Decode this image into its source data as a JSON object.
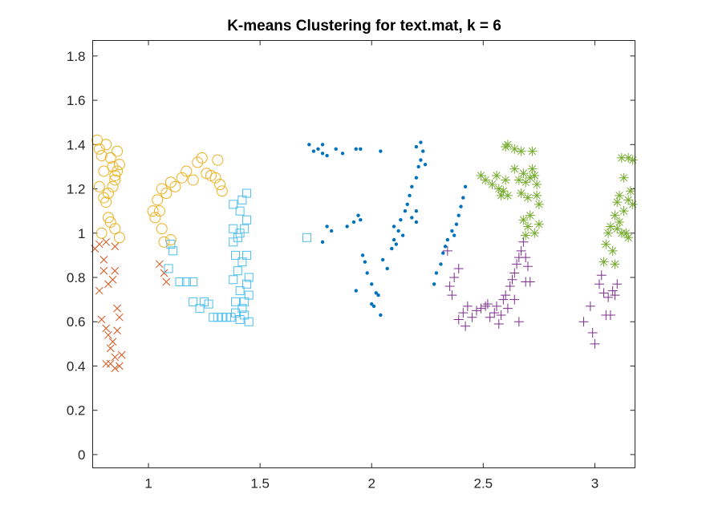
{
  "chart_data": {
    "type": "scatter",
    "title": "K-means Clustering for text.mat, k = 6",
    "xlabel": "",
    "ylabel": "",
    "xlim": [
      0.75,
      3.18
    ],
    "ylim": [
      -0.06,
      1.87
    ],
    "xticks": [
      1,
      1.5,
      2,
      2.5,
      3
    ],
    "xtick_labels": [
      "1",
      "1.5",
      "2",
      "2.5",
      "3"
    ],
    "yticks": [
      0,
      0.2,
      0.4,
      0.6,
      0.8,
      1,
      1.2,
      1.4,
      1.6,
      1.8
    ],
    "ytick_labels": [
      "0",
      "0.2",
      "0.4",
      "0.6",
      "0.8",
      "1",
      "1.2",
      "1.4",
      "1.6",
      "1.8"
    ],
    "grid": false,
    "box": true,
    "series": [
      {
        "marker": "circle",
        "color": "#EDB120",
        "points": [
          [
            0.77,
            1.42
          ],
          [
            0.78,
            1.38
          ],
          [
            0.79,
            1.35
          ],
          [
            0.8,
            1.28
          ],
          [
            0.81,
            1.4
          ],
          [
            0.83,
            1.34
          ],
          [
            0.84,
            1.3
          ],
          [
            0.85,
            1.26
          ],
          [
            0.86,
            1.37
          ],
          [
            0.87,
            1.31
          ],
          [
            0.78,
            1.21
          ],
          [
            0.8,
            1.16
          ],
          [
            0.81,
            1.14
          ],
          [
            0.82,
            1.18
          ],
          [
            0.84,
            1.21
          ],
          [
            0.85,
            1.24
          ],
          [
            0.86,
            1.28
          ],
          [
            0.79,
            1.0
          ],
          [
            0.82,
            1.07
          ],
          [
            0.83,
            1.05
          ],
          [
            0.85,
            1.02
          ],
          [
            0.87,
            0.98
          ],
          [
            1.02,
            1.1
          ],
          [
            1.03,
            1.07
          ],
          [
            1.04,
            1.15
          ],
          [
            1.06,
            1.2
          ],
          [
            1.08,
            1.18
          ],
          [
            1.1,
            1.23
          ],
          [
            1.12,
            1.21
          ],
          [
            1.15,
            1.25
          ],
          [
            1.17,
            1.28
          ],
          [
            1.2,
            1.24
          ],
          [
            1.22,
            1.32
          ],
          [
            1.24,
            1.34
          ],
          [
            1.26,
            1.27
          ],
          [
            1.28,
            1.26
          ],
          [
            1.3,
            1.25
          ],
          [
            1.31,
            1.33
          ],
          [
            1.32,
            1.22
          ],
          [
            1.33,
            1.19
          ],
          [
            1.06,
            1.02
          ],
          [
            1.07,
            0.96
          ],
          [
            1.1,
            0.97
          ],
          [
            1.05,
            1.1
          ]
        ]
      },
      {
        "marker": "x",
        "color": "#D95319",
        "points": [
          [
            0.76,
            0.93
          ],
          [
            0.78,
            0.95
          ],
          [
            0.8,
            0.88
          ],
          [
            0.81,
            0.96
          ],
          [
            0.8,
            0.83
          ],
          [
            0.82,
            0.77
          ],
          [
            0.84,
            0.79
          ],
          [
            0.85,
            0.83
          ],
          [
            0.85,
            0.94
          ],
          [
            0.78,
            0.74
          ],
          [
            0.79,
            0.61
          ],
          [
            0.81,
            0.57
          ],
          [
            0.82,
            0.54
          ],
          [
            0.83,
            0.48
          ],
          [
            0.84,
            0.51
          ],
          [
            0.85,
            0.44
          ],
          [
            0.86,
            0.66
          ],
          [
            0.86,
            0.56
          ],
          [
            0.87,
            0.62
          ],
          [
            0.88,
            0.45
          ],
          [
            0.81,
            0.41
          ],
          [
            0.83,
            0.41
          ],
          [
            0.85,
            0.39
          ],
          [
            0.87,
            0.4
          ],
          [
            1.05,
            0.86
          ],
          [
            1.07,
            0.82
          ],
          [
            1.08,
            0.78
          ]
        ]
      },
      {
        "marker": "square",
        "color": "#4DBEEE",
        "points": [
          [
            1.1,
            0.95
          ],
          [
            1.11,
            0.92
          ],
          [
            1.09,
            0.84
          ],
          [
            1.14,
            0.78
          ],
          [
            1.17,
            0.78
          ],
          [
            1.2,
            0.78
          ],
          [
            1.2,
            0.69
          ],
          [
            1.23,
            0.66
          ],
          [
            1.25,
            0.69
          ],
          [
            1.27,
            0.68
          ],
          [
            1.29,
            0.62
          ],
          [
            1.31,
            0.62
          ],
          [
            1.33,
            0.62
          ],
          [
            1.35,
            0.62
          ],
          [
            1.37,
            0.62
          ],
          [
            1.39,
            0.64
          ],
          [
            1.41,
            0.61
          ],
          [
            1.43,
            0.63
          ],
          [
            1.45,
            0.6
          ],
          [
            1.42,
            0.66
          ],
          [
            1.43,
            0.69
          ],
          [
            1.45,
            0.72
          ],
          [
            1.44,
            0.77
          ],
          [
            1.41,
            0.74
          ],
          [
            1.39,
            0.69
          ],
          [
            1.38,
            0.79
          ],
          [
            1.4,
            0.83
          ],
          [
            1.39,
            0.9
          ],
          [
            1.42,
            0.87
          ],
          [
            1.44,
            0.9
          ],
          [
            1.4,
            0.98
          ],
          [
            1.38,
            0.96
          ],
          [
            1.41,
            1.0
          ],
          [
            1.43,
            1.02
          ],
          [
            1.44,
            1.06
          ],
          [
            1.41,
            1.1
          ],
          [
            1.38,
            1.13
          ],
          [
            1.42,
            1.15
          ],
          [
            1.44,
            1.18
          ],
          [
            1.38,
            1.02
          ],
          [
            1.45,
            0.8
          ],
          [
            1.71,
            0.98
          ]
        ]
      },
      {
        "marker": "dot",
        "color": "#0072BD",
        "points": [
          [
            1.72,
            1.4
          ],
          [
            1.74,
            1.37
          ],
          [
            1.76,
            1.38
          ],
          [
            1.78,
            1.36
          ],
          [
            1.78,
            1.4
          ],
          [
            1.8,
            1.35
          ],
          [
            1.84,
            1.38
          ],
          [
            1.87,
            1.36
          ],
          [
            1.93,
            1.38
          ],
          [
            1.95,
            1.38
          ],
          [
            2.04,
            1.37
          ],
          [
            2.2,
            1.39
          ],
          [
            2.22,
            1.41
          ],
          [
            2.23,
            1.37
          ],
          [
            1.8,
            1.03
          ],
          [
            1.82,
            1.01
          ],
          [
            1.78,
            0.96
          ],
          [
            1.89,
            1.03
          ],
          [
            1.92,
            1.05
          ],
          [
            1.94,
            1.08
          ],
          [
            1.95,
            1.06
          ],
          [
            1.96,
            0.9
          ],
          [
            1.97,
            0.87
          ],
          [
            1.98,
            0.82
          ],
          [
            2.0,
            0.77
          ],
          [
            2.02,
            0.73
          ],
          [
            2.0,
            0.68
          ],
          [
            2.03,
            0.72
          ],
          [
            2.04,
            0.63
          ],
          [
            2.05,
            0.88
          ],
          [
            2.07,
            0.84
          ],
          [
            2.09,
            0.93
          ],
          [
            2.1,
            0.97
          ],
          [
            2.12,
            1.01
          ],
          [
            2.13,
            1.06
          ],
          [
            2.15,
            1.1
          ],
          [
            2.16,
            1.13
          ],
          [
            2.17,
            1.17
          ],
          [
            2.18,
            1.21
          ],
          [
            2.2,
            1.25
          ],
          [
            2.21,
            1.3
          ],
          [
            2.22,
            1.33
          ],
          [
            2.24,
            1.31
          ],
          [
            2.2,
            1.1
          ],
          [
            2.18,
            1.07
          ],
          [
            2.2,
            1.05
          ],
          [
            2.1,
            1.03
          ],
          [
            2.11,
            0.95
          ],
          [
            2.14,
            0.99
          ],
          [
            2.28,
            0.77
          ],
          [
            2.29,
            0.82
          ],
          [
            2.31,
            0.86
          ],
          [
            2.32,
            0.91
          ],
          [
            2.33,
            0.94
          ],
          [
            2.34,
            0.97
          ],
          [
            2.36,
            1.01
          ],
          [
            2.38,
            1.04
          ],
          [
            2.39,
            1.08
          ],
          [
            2.4,
            1.12
          ],
          [
            2.41,
            1.16
          ],
          [
            2.42,
            1.21
          ],
          [
            2.37,
            0.99
          ],
          [
            1.93,
            0.74
          ],
          [
            2.01,
            0.67
          ]
        ]
      },
      {
        "marker": "plus",
        "color": "#7E2F8E",
        "points": [
          [
            2.34,
            0.92
          ],
          [
            2.35,
            0.76
          ],
          [
            2.36,
            0.72
          ],
          [
            2.37,
            0.8
          ],
          [
            2.39,
            0.84
          ],
          [
            2.39,
            0.61
          ],
          [
            2.41,
            0.64
          ],
          [
            2.42,
            0.58
          ],
          [
            2.43,
            0.67
          ],
          [
            2.45,
            0.62
          ],
          [
            2.47,
            0.65
          ],
          [
            2.49,
            0.66
          ],
          [
            2.51,
            0.67
          ],
          [
            2.53,
            0.62
          ],
          [
            2.55,
            0.64
          ],
          [
            2.57,
            0.59
          ],
          [
            2.59,
            0.7
          ],
          [
            2.6,
            0.72
          ],
          [
            2.61,
            0.66
          ],
          [
            2.62,
            0.76
          ],
          [
            2.63,
            0.79
          ],
          [
            2.64,
            0.82
          ],
          [
            2.65,
            0.86
          ],
          [
            2.66,
            0.89
          ],
          [
            2.67,
            0.92
          ],
          [
            2.68,
            0.96
          ],
          [
            2.69,
            0.89
          ],
          [
            2.7,
            0.85
          ],
          [
            2.69,
            0.78
          ],
          [
            2.71,
            0.78
          ],
          [
            2.64,
            0.7
          ],
          [
            2.58,
            0.63
          ],
          [
            2.52,
            0.68
          ],
          [
            2.95,
            0.6
          ],
          [
            2.98,
            0.67
          ],
          [
            2.99,
            0.55
          ],
          [
            3.0,
            0.5
          ],
          [
            3.02,
            0.77
          ],
          [
            3.03,
            0.81
          ],
          [
            3.04,
            0.73
          ],
          [
            3.05,
            0.63
          ],
          [
            3.06,
            0.71
          ],
          [
            3.08,
            0.74
          ],
          [
            3.09,
            0.72
          ],
          [
            3.1,
            0.77
          ],
          [
            3.07,
            0.63
          ],
          [
            2.66,
            0.6
          ],
          [
            2.56,
            0.67
          ]
        ]
      },
      {
        "marker": "asterisk",
        "color": "#77AC30",
        "points": [
          [
            2.49,
            1.26
          ],
          [
            2.51,
            1.24
          ],
          [
            2.54,
            1.22
          ],
          [
            2.56,
            1.26
          ],
          [
            2.57,
            1.2
          ],
          [
            2.58,
            1.17
          ],
          [
            2.59,
            1.19
          ],
          [
            2.6,
            1.24
          ],
          [
            2.61,
            1.17
          ],
          [
            2.6,
            1.39
          ],
          [
            2.61,
            1.4
          ],
          [
            2.64,
            1.38
          ],
          [
            2.67,
            1.37
          ],
          [
            2.64,
            1.29
          ],
          [
            2.66,
            1.24
          ],
          [
            2.67,
            1.18
          ],
          [
            2.68,
            1.27
          ],
          [
            2.69,
            1.23
          ],
          [
            2.7,
            1.16
          ],
          [
            2.71,
            1.25
          ],
          [
            2.72,
            1.29
          ],
          [
            2.73,
            1.26
          ],
          [
            2.74,
            1.22
          ],
          [
            2.74,
            1.17
          ],
          [
            2.75,
            1.13
          ],
          [
            2.72,
            1.37
          ],
          [
            2.68,
            1.06
          ],
          [
            2.7,
            1.03
          ],
          [
            2.69,
            0.99
          ],
          [
            2.73,
            1.0
          ],
          [
            2.75,
            1.04
          ],
          [
            2.71,
            1.08
          ],
          [
            3.04,
            0.87
          ],
          [
            3.05,
            0.95
          ],
          [
            3.06,
            1.0
          ],
          [
            3.07,
            1.03
          ],
          [
            3.08,
            0.92
          ],
          [
            3.09,
            1.08
          ],
          [
            3.1,
            1.02
          ],
          [
            3.1,
            1.14
          ],
          [
            3.11,
            1.05
          ],
          [
            3.12,
            1.0
          ],
          [
            3.13,
            1.1
          ],
          [
            3.14,
            1.0
          ],
          [
            3.15,
            0.98
          ],
          [
            3.12,
            1.34
          ],
          [
            3.13,
            1.25
          ],
          [
            3.15,
            1.34
          ],
          [
            3.17,
            1.33
          ],
          [
            3.16,
            1.19
          ],
          [
            3.17,
            1.13
          ],
          [
            3.15,
            1.15
          ],
          [
            3.09,
            0.86
          ],
          [
            3.11,
            1.17
          ]
        ]
      }
    ]
  }
}
